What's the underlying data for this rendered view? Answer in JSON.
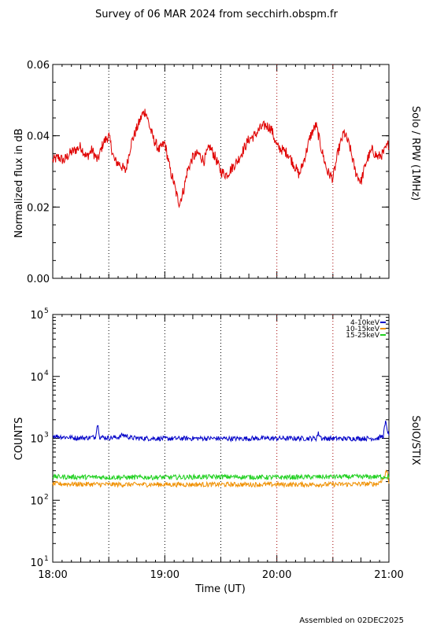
{
  "title": "Survey of 06 MAR 2024 from secchirh.obspm.fr",
  "footer": "Assembled on 02DEC2025",
  "chart_data": [
    {
      "type": "line",
      "ylabel": "Normalized flux in dB",
      "right_label": "Solo / RPW (1MHz)",
      "ylim": [
        0.0,
        0.06
      ],
      "yticks": [
        0.0,
        0.02,
        0.04,
        0.06
      ],
      "ytick_labels": [
        "0.00",
        "0.02",
        "0.04",
        "0.06"
      ],
      "xlim_hours": [
        18.0,
        21.0
      ],
      "vlines_hours": [
        18.5,
        19.0,
        19.5,
        20.0,
        20.5
      ],
      "series": [
        {
          "color": "#e00000",
          "x": [
            18.0,
            18.05,
            18.1,
            18.15,
            18.2,
            18.25,
            18.3,
            18.35,
            18.4,
            18.45,
            18.5,
            18.55,
            18.6,
            18.65,
            18.7,
            18.75,
            18.8,
            18.83,
            18.86,
            18.9,
            18.95,
            19.0,
            19.05,
            19.08,
            19.1,
            19.13,
            19.17,
            19.2,
            19.25,
            19.3,
            19.35,
            19.4,
            19.45,
            19.5,
            19.55,
            19.6,
            19.65,
            19.7,
            19.75,
            19.8,
            19.85,
            19.9,
            19.95,
            20.0,
            20.05,
            20.1,
            20.15,
            20.2,
            20.25,
            20.3,
            20.35,
            20.4,
            20.45,
            20.5,
            20.55,
            20.6,
            20.65,
            20.7,
            20.75,
            20.8,
            20.85,
            20.9,
            20.95,
            21.0
          ],
          "y": [
            0.033,
            0.034,
            0.033,
            0.035,
            0.036,
            0.037,
            0.034,
            0.036,
            0.033,
            0.038,
            0.04,
            0.033,
            0.032,
            0.03,
            0.038,
            0.042,
            0.046,
            0.047,
            0.043,
            0.039,
            0.036,
            0.038,
            0.03,
            0.027,
            0.024,
            0.021,
            0.025,
            0.03,
            0.034,
            0.035,
            0.033,
            0.037,
            0.034,
            0.03,
            0.029,
            0.031,
            0.033,
            0.036,
            0.039,
            0.04,
            0.042,
            0.043,
            0.042,
            0.037,
            0.036,
            0.035,
            0.032,
            0.029,
            0.034,
            0.04,
            0.043,
            0.036,
            0.03,
            0.028,
            0.036,
            0.041,
            0.037,
            0.03,
            0.027,
            0.033,
            0.036,
            0.034,
            0.035,
            0.038
          ]
        }
      ]
    },
    {
      "type": "line",
      "ylabel": "COUNTS",
      "right_label": "SolO/STIX",
      "xlabel": "Time (UT)",
      "yscale": "log",
      "ylim": [
        10,
        100000
      ],
      "ytick_values": [
        10,
        100,
        1000,
        10000,
        100000
      ],
      "ytick_bases": [
        "10",
        "10",
        "10",
        "10",
        "10"
      ],
      "ytick_exps": [
        "1",
        "2",
        "3",
        "4",
        "5"
      ],
      "xlim_hours": [
        18.0,
        21.0
      ],
      "xticks_hours": [
        18.0,
        19.0,
        20.0,
        21.0
      ],
      "xtick_labels": [
        "18:00",
        "19:00",
        "20:00",
        "21:00"
      ],
      "vlines_hours": [
        18.5,
        19.0,
        19.5,
        20.0,
        20.5
      ],
      "legend_position": "top-right",
      "series": [
        {
          "name": "4-10keV",
          "color": "#0000c8",
          "x": [
            18.0,
            18.1,
            18.2,
            18.3,
            18.38,
            18.4,
            18.42,
            18.5,
            18.6,
            18.62,
            18.7,
            18.8,
            18.9,
            19.0,
            19.2,
            19.4,
            19.6,
            19.8,
            20.0,
            20.2,
            20.35,
            20.37,
            20.4,
            20.6,
            20.8,
            20.9,
            20.95,
            20.97,
            21.0
          ],
          "y": [
            1100,
            1050,
            1020,
            1020,
            1050,
            1700,
            1050,
            1020,
            1050,
            1150,
            1020,
            1000,
            1000,
            990,
            1000,
            1000,
            990,
            1000,
            1000,
            1000,
            1000,
            1200,
            1000,
            990,
            1000,
            1000,
            1100,
            1800,
            1050
          ]
        },
        {
          "name": "10-15keV",
          "color": "#f09000",
          "x": [
            18.0,
            18.5,
            19.0,
            19.5,
            20.0,
            20.5,
            20.9,
            20.96,
            20.98,
            21.0
          ],
          "y": [
            185,
            180,
            180,
            180,
            180,
            180,
            185,
            230,
            310,
            200
          ]
        },
        {
          "name": "15-25keV",
          "color": "#20d020",
          "x": [
            18.0,
            18.5,
            19.0,
            19.5,
            20.0,
            20.5,
            21.0
          ],
          "y": [
            240,
            235,
            235,
            240,
            235,
            240,
            240
          ]
        }
      ]
    }
  ]
}
